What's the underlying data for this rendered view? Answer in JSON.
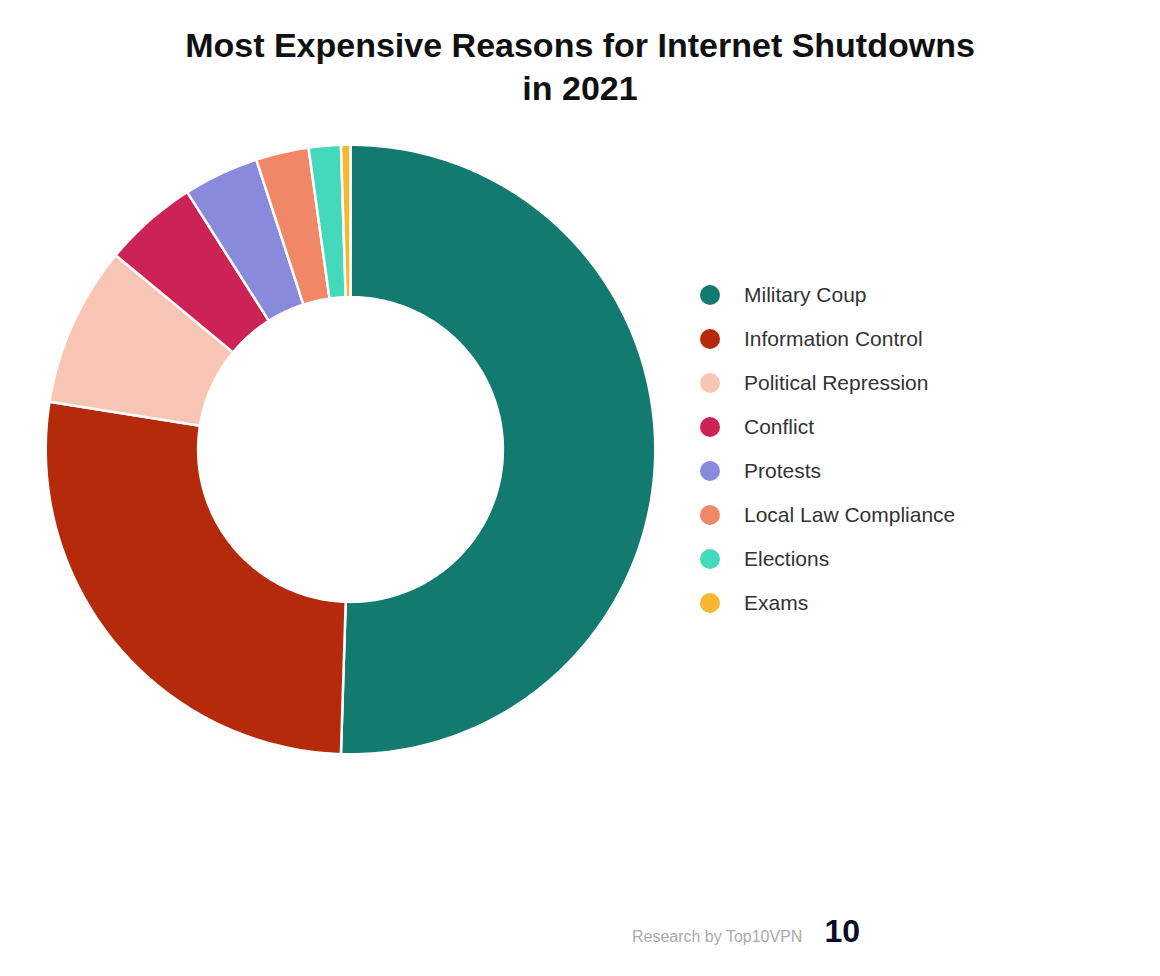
{
  "chart_data": {
    "type": "pie",
    "title": "Most Expensive Reasons for Internet Shutdowns\nin 2021",
    "categories": [
      "Military Coup",
      "Information Control",
      "Political Repression",
      "Conflict",
      "Protests",
      "Local Law Compliance",
      "Elections",
      "Exams"
    ],
    "values": [
      50.5,
      27.0,
      8.5,
      5.0,
      4.0,
      2.8,
      1.7,
      0.5
    ],
    "colors": [
      "#127a6e",
      "#b52a0a",
      "#f9c5b5",
      "#cc2255",
      "#8a8adc",
      "#f08868",
      "#44d9bb",
      "#f5b830"
    ],
    "legend": "right",
    "annotations": [
      "Research by Top10VPN",
      "10"
    ]
  }
}
